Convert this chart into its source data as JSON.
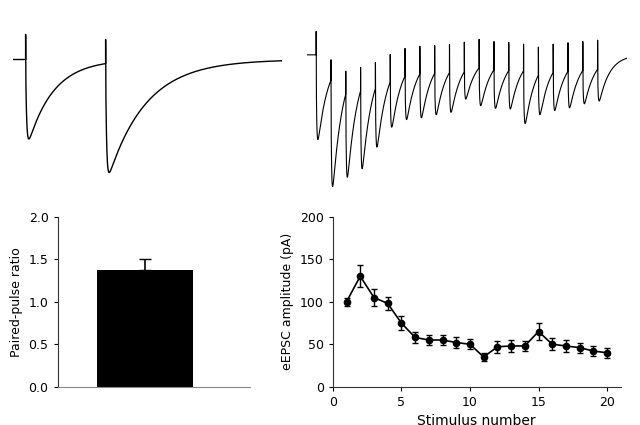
{
  "ppf_bar_value": 1.37,
  "ppf_bar_error": 0.13,
  "ppf_ylim": [
    0,
    2
  ],
  "ppf_yticks": [
    0,
    0.5,
    1,
    1.5,
    2
  ],
  "ppf_ylabel": "Paired-pulse ratio",
  "stimulus_numbers": [
    1,
    2,
    3,
    4,
    5,
    6,
    7,
    8,
    9,
    10,
    11,
    12,
    13,
    14,
    15,
    16,
    17,
    18,
    19,
    20
  ],
  "epsc_amplitudes": [
    100,
    130,
    105,
    98,
    75,
    58,
    55,
    55,
    52,
    50,
    35,
    47,
    48,
    48,
    65,
    50,
    48,
    46,
    42,
    40
  ],
  "epsc_errors": [
    5,
    13,
    10,
    8,
    8,
    7,
    6,
    6,
    6,
    6,
    5,
    7,
    7,
    6,
    10,
    7,
    7,
    6,
    6,
    6
  ],
  "epsc_ylim": [
    0,
    200
  ],
  "epsc_yticks": [
    0,
    50,
    100,
    150,
    200
  ],
  "epsc_ylabel": "eEPSC amplitude (pA)",
  "epsc_xlabel": "Stimulus number",
  "bar_color": "#000000",
  "line_color": "#000000",
  "background_color": "#ffffff"
}
